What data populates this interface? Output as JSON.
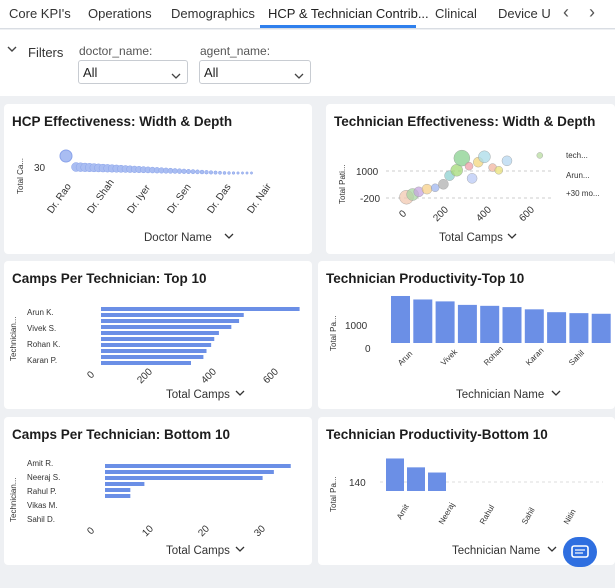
{
  "tabs": [
    "Core KPI's",
    "Operations",
    "Demographics",
    "HCP & Technician Contrib...",
    "Clinical",
    "Device U"
  ],
  "active_tab": 3,
  "colors": {
    "bar": "#6b8fe6",
    "accent": "#2f80ed",
    "bubble": "#a9bdf2"
  },
  "filters": {
    "label": "Filters",
    "doctor_label": "doctor_name:",
    "doctor_value": "All",
    "agent_label": "agent_name:",
    "agent_value": "All"
  },
  "cards": {
    "hcp": {
      "title": "HCP Effectiveness: Width & Depth",
      "ylabel": "Total Ca...",
      "xlabel": "Doctor Name",
      "ytick": "30",
      "xlabels": [
        "Dr. Rao",
        "Dr. Shah",
        "Dr. Iyer",
        "Dr. Sen",
        "Dr. Das",
        "Dr. Nair"
      ],
      "chart_data": {
        "type": "scatter",
        "title": "HCP Effectiveness: Width & Depth",
        "xlabel": "Doctor Name",
        "ylabel": "Total Ca...",
        "categories": [
          "Dr. Rao",
          "Dr. Shah",
          "Dr. Iyer",
          "Dr. Sen",
          "Dr. Das",
          "Dr. Nair"
        ],
        "values": [
          34,
          31,
          30,
          30,
          29,
          29
        ]
      }
    },
    "tech_eff": {
      "title": "Technician Effectiveness: Width & Depth",
      "ylabel": "Total Pati...",
      "xlabel": "Total Camps",
      "yticks": [
        "1000",
        "-200"
      ],
      "xticks": [
        "0",
        "200",
        "400",
        "600"
      ],
      "legend": [
        "tech...",
        "Arun...",
        "+30 mo..."
      ],
      "chart_data": {
        "type": "scatter",
        "title": "Technician Effectiveness: Width & Depth",
        "xlabel": "Total Camps",
        "ylabel": "Total Pati...",
        "xlim": [
          -60,
          720
        ],
        "ylim": [
          -500,
          1800
        ],
        "points": [
          {
            "x": 30,
            "y": -100,
            "r": 7,
            "c": "#f2c8b0"
          },
          {
            "x": 60,
            "y": 0,
            "r": 6,
            "c": "#a8d5a2"
          },
          {
            "x": 90,
            "y": 100,
            "r": 5,
            "c": "#c6a5e0"
          },
          {
            "x": 130,
            "y": 200,
            "r": 5,
            "c": "#f7d08a"
          },
          {
            "x": 170,
            "y": 250,
            "r": 4,
            "c": "#9fb6ef"
          },
          {
            "x": 210,
            "y": 380,
            "r": 5,
            "c": "#b0b0b0"
          },
          {
            "x": 240,
            "y": 700,
            "r": 5,
            "c": "#8ed0d0"
          },
          {
            "x": 275,
            "y": 900,
            "r": 6,
            "c": "#a3d977"
          },
          {
            "x": 300,
            "y": 1350,
            "r": 8,
            "c": "#88d08f"
          },
          {
            "x": 335,
            "y": 1050,
            "r": 4,
            "c": "#f0a0a8"
          },
          {
            "x": 350,
            "y": 600,
            "r": 5,
            "c": "#b9c9f5"
          },
          {
            "x": 380,
            "y": 1200,
            "r": 5,
            "c": "#f3d77e"
          },
          {
            "x": 410,
            "y": 1400,
            "r": 6,
            "c": "#a9dbe8"
          },
          {
            "x": 450,
            "y": 1000,
            "r": 4,
            "c": "#f2b6a0"
          },
          {
            "x": 480,
            "y": 900,
            "r": 4,
            "c": "#e9e27a"
          },
          {
            "x": 520,
            "y": 1250,
            "r": 5,
            "c": "#b6d7f0"
          },
          {
            "x": 680,
            "y": 1450,
            "r": 3,
            "c": "#b8dca0"
          }
        ]
      }
    },
    "camps_top": {
      "title": "Camps Per Technician: Top 10",
      "ylabel": "Technician...",
      "xlabel": "Total Camps",
      "ylabels": [
        "Arun K.",
        "Vivek S.",
        "Rohan K.",
        "Karan P."
      ],
      "xticks": [
        "0",
        "200",
        "400",
        "600"
      ],
      "chart_data": {
        "type": "bar",
        "orientation": "horizontal",
        "title": "Camps Per Technician: Top 10",
        "xlabel": "Total Camps",
        "xlim": [
          0,
          680
        ],
        "values": [
          640,
          460,
          445,
          420,
          380,
          365,
          355,
          340,
          330,
          290
        ]
      }
    },
    "prod_top": {
      "title": "Technician Productivity-Top 10",
      "ylabel": "Total Pa...",
      "xlabel": "Technician Name",
      "yticks": [
        "1000",
        "0"
      ],
      "xlabels": [
        "Arun",
        "Vivek",
        "Rohan",
        "Karan",
        "Sahil"
      ],
      "chart_data": {
        "type": "bar",
        "title": "Technician Productivity-Top 10",
        "xlabel": "Technician Name",
        "ylim": [
          0,
          1700
        ],
        "values": [
          1480,
          1370,
          1310,
          1200,
          1170,
          1130,
          1060,
          970,
          940,
          920
        ]
      }
    },
    "camps_bottom": {
      "title": "Camps Per Technician: Bottom 10",
      "ylabel": "Technician...",
      "xlabel": "Total Camps",
      "ylabels": [
        "Amit R.",
        "Neeraj S.",
        "Rahul P.",
        "Vikas M.",
        "Sahil D."
      ],
      "xticks": [
        "0",
        "10",
        "20",
        "30"
      ],
      "chart_data": {
        "type": "bar",
        "orientation": "horizontal",
        "title": "Camps Per Technician: Bottom 10",
        "xlabel": "Total Camps",
        "xlim": [
          0,
          35
        ],
        "values": [
          33,
          30,
          28,
          7,
          4.5,
          4.5
        ]
      }
    },
    "prod_bottom": {
      "title": "Technician Productivity-Bottom 10",
      "ylabel": "Total Pa...",
      "xlabel": "Technician Name",
      "ytick": "140",
      "xlabels": [
        "Amit",
        "Neeraj",
        "Rahul",
        "Sahil",
        "Nitin"
      ],
      "chart_data": {
        "type": "bar",
        "title": "Technician Productivity-Bottom 10",
        "xlabel": "Technician Name",
        "ylim": [
          0,
          230
        ],
        "values": [
          220,
          160,
          125
        ]
      }
    }
  }
}
